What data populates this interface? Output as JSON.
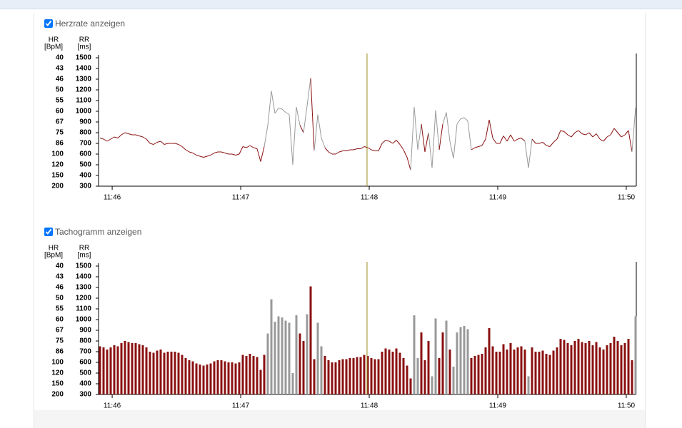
{
  "chart_data": [
    {
      "type": "line",
      "checkbox_label": "Herzrate anzeigen",
      "hr_axis_label": [
        "HR",
        "[BpM]"
      ],
      "rr_axis_label": [
        "RR",
        "[ms]"
      ],
      "color": "#8b1010",
      "artifact_color": "#999999",
      "values": [
        750,
        740,
        720,
        740,
        760,
        750,
        780,
        800,
        790,
        780,
        780,
        770,
        760,
        740,
        700,
        690,
        710,
        720,
        690,
        700,
        700,
        700,
        690,
        670,
        640,
        620,
        610,
        590,
        580,
        570,
        580,
        590,
        610,
        620,
        620,
        610,
        600,
        600,
        590,
        600,
        670,
        660,
        680,
        660,
        650,
        530,
        670,
        870,
        1190,
        980,
        1030,
        1020,
        990,
        970,
        500,
        1040,
        870,
        800,
        1050,
        1310,
        630,
        970,
        750,
        660,
        620,
        600,
        600,
        620,
        630,
        630,
        640,
        640,
        650,
        650,
        670,
        660,
        640,
        630,
        630,
        700,
        730,
        720,
        700,
        730,
        690,
        640,
        570,
        450,
        1040,
        640,
        880,
        620,
        800,
        470,
        1010,
        640,
        880,
        990,
        720,
        560,
        880,
        930,
        940,
        910,
        640,
        660,
        670,
        680,
        740,
        920,
        750,
        700,
        700,
        770,
        720,
        780,
        720,
        740,
        750,
        720,
        470,
        740,
        700,
        700,
        710,
        680,
        670,
        710,
        740,
        820,
        810,
        780,
        760,
        800,
        820,
        790,
        780,
        800,
        760,
        790,
        740,
        720,
        760,
        780,
        840,
        800,
        760,
        780,
        820,
        620,
        1030
      ],
      "artifact": [
        0,
        0,
        0,
        0,
        0,
        0,
        0,
        0,
        0,
        0,
        0,
        0,
        0,
        0,
        0,
        0,
        0,
        0,
        0,
        0,
        0,
        0,
        0,
        0,
        0,
        0,
        0,
        0,
        0,
        0,
        0,
        0,
        0,
        0,
        0,
        0,
        0,
        0,
        0,
        0,
        0,
        0,
        0,
        0,
        0,
        0,
        0,
        1,
        1,
        1,
        1,
        1,
        1,
        1,
        1,
        1,
        0,
        0,
        1,
        0,
        0,
        1,
        1,
        0,
        0,
        0,
        0,
        0,
        0,
        0,
        0,
        0,
        0,
        0,
        0,
        0,
        0,
        0,
        0,
        0,
        0,
        0,
        0,
        0,
        0,
        0,
        0,
        0,
        1,
        1,
        0,
        0,
        0,
        1,
        1,
        0,
        0,
        1,
        0,
        1,
        1,
        1,
        1,
        1,
        0,
        0,
        0,
        0,
        0,
        0,
        0,
        0,
        0,
        0,
        0,
        0,
        0,
        0,
        0,
        0,
        1,
        0,
        0,
        0,
        0,
        0,
        0,
        0,
        0,
        0,
        0,
        0,
        0,
        0,
        0,
        0,
        0,
        0,
        0,
        0,
        0,
        0,
        0,
        0,
        0,
        0,
        0,
        0,
        0,
        0,
        1
      ],
      "ylim": [
        300,
        1500
      ],
      "yticks": [
        300,
        400,
        500,
        600,
        700,
        800,
        900,
        1000,
        1100,
        1200,
        1300,
        1400,
        1500
      ],
      "hr_ticks": [
        {
          "value": 1500,
          "label": "40"
        },
        {
          "value": 1400,
          "label": "43"
        },
        {
          "value": 1300,
          "label": "46"
        },
        {
          "value": 1200,
          "label": "50"
        },
        {
          "value": 1100,
          "label": "55"
        },
        {
          "value": 1000,
          "label": "60"
        },
        {
          "value": 900,
          "label": "67"
        },
        {
          "value": 800,
          "label": "75"
        },
        {
          "value": 700,
          "label": "86"
        },
        {
          "value": 600,
          "label": "100"
        },
        {
          "value": 500,
          "label": "120"
        },
        {
          "value": 400,
          "label": "150"
        },
        {
          "value": 300,
          "label": "200"
        }
      ],
      "xlim": [
        705.894,
        710.078
      ],
      "xticks": [
        {
          "value": 706,
          "label": "11:46"
        },
        {
          "value": 707,
          "label": "11:47"
        },
        {
          "value": 708,
          "label": "11:48"
        },
        {
          "value": 709,
          "label": "11:49"
        },
        {
          "value": 710,
          "label": "11:50"
        }
      ],
      "cursor_x": 707.983,
      "cursor_color": "#9a8a1a"
    },
    {
      "type": "bar",
      "checkbox_label": "Tachogramm anzeigen",
      "hr_axis_label": [
        "HR",
        "[BpM]"
      ],
      "rr_axis_label": [
        "RR",
        "[ms]"
      ],
      "color": "#8b1010",
      "artifact_color": "#999999",
      "values": [
        750,
        740,
        720,
        740,
        760,
        750,
        780,
        800,
        790,
        780,
        780,
        770,
        760,
        740,
        700,
        690,
        710,
        720,
        690,
        700,
        700,
        700,
        690,
        670,
        640,
        620,
        610,
        590,
        580,
        570,
        580,
        590,
        610,
        620,
        620,
        610,
        600,
        600,
        590,
        600,
        670,
        660,
        680,
        660,
        650,
        530,
        670,
        870,
        1190,
        980,
        1030,
        1020,
        990,
        970,
        500,
        1040,
        870,
        800,
        1050,
        1310,
        630,
        970,
        750,
        660,
        620,
        600,
        600,
        620,
        630,
        630,
        640,
        640,
        650,
        650,
        670,
        660,
        640,
        630,
        630,
        700,
        730,
        720,
        700,
        730,
        690,
        640,
        570,
        450,
        1040,
        640,
        880,
        620,
        800,
        470,
        1010,
        640,
        880,
        990,
        720,
        560,
        880,
        930,
        940,
        910,
        640,
        660,
        670,
        680,
        740,
        920,
        750,
        700,
        700,
        770,
        720,
        780,
        720,
        740,
        750,
        720,
        470,
        740,
        700,
        700,
        710,
        680,
        670,
        710,
        740,
        820,
        810,
        780,
        760,
        800,
        820,
        790,
        780,
        800,
        760,
        790,
        740,
        720,
        760,
        780,
        840,
        800,
        760,
        780,
        820,
        620,
        1030
      ],
      "artifact": [
        0,
        0,
        0,
        0,
        0,
        0,
        0,
        0,
        0,
        0,
        0,
        0,
        0,
        0,
        0,
        0,
        0,
        0,
        0,
        0,
        0,
        0,
        0,
        0,
        0,
        0,
        0,
        0,
        0,
        0,
        0,
        0,
        0,
        0,
        0,
        0,
        0,
        0,
        0,
        0,
        0,
        0,
        0,
        0,
        0,
        0,
        0,
        1,
        1,
        1,
        1,
        1,
        1,
        1,
        1,
        1,
        0,
        0,
        1,
        0,
        0,
        1,
        1,
        0,
        0,
        0,
        0,
        0,
        0,
        0,
        0,
        0,
        0,
        0,
        0,
        0,
        0,
        0,
        0,
        0,
        0,
        0,
        0,
        0,
        0,
        0,
        0,
        0,
        1,
        1,
        0,
        0,
        0,
        1,
        1,
        0,
        0,
        1,
        0,
        1,
        1,
        1,
        1,
        1,
        0,
        0,
        0,
        0,
        0,
        0,
        0,
        0,
        0,
        0,
        0,
        0,
        0,
        0,
        0,
        0,
        1,
        0,
        0,
        0,
        0,
        0,
        0,
        0,
        0,
        0,
        0,
        0,
        0,
        0,
        0,
        0,
        0,
        0,
        0,
        0,
        0,
        0,
        0,
        0,
        0,
        0,
        0,
        0,
        0,
        0,
        1
      ],
      "ylim": [
        300,
        1500
      ],
      "yticks": [
        300,
        400,
        500,
        600,
        700,
        800,
        900,
        1000,
        1100,
        1200,
        1300,
        1400,
        1500
      ],
      "hr_ticks": [
        {
          "value": 1500,
          "label": "40"
        },
        {
          "value": 1400,
          "label": "43"
        },
        {
          "value": 1300,
          "label": "46"
        },
        {
          "value": 1200,
          "label": "50"
        },
        {
          "value": 1100,
          "label": "55"
        },
        {
          "value": 1000,
          "label": "60"
        },
        {
          "value": 900,
          "label": "67"
        },
        {
          "value": 800,
          "label": "75"
        },
        {
          "value": 700,
          "label": "86"
        },
        {
          "value": 600,
          "label": "100"
        },
        {
          "value": 500,
          "label": "120"
        },
        {
          "value": 400,
          "label": "150"
        },
        {
          "value": 300,
          "label": "200"
        }
      ],
      "xlim": [
        705.894,
        710.078
      ],
      "xticks": [
        {
          "value": 706,
          "label": "11:46"
        },
        {
          "value": 707,
          "label": "11:47"
        },
        {
          "value": 708,
          "label": "11:48"
        },
        {
          "value": 709,
          "label": "11:49"
        },
        {
          "value": 710,
          "label": "11:50"
        }
      ],
      "cursor_x": 707.983,
      "cursor_color": "#9a8a1a"
    }
  ]
}
